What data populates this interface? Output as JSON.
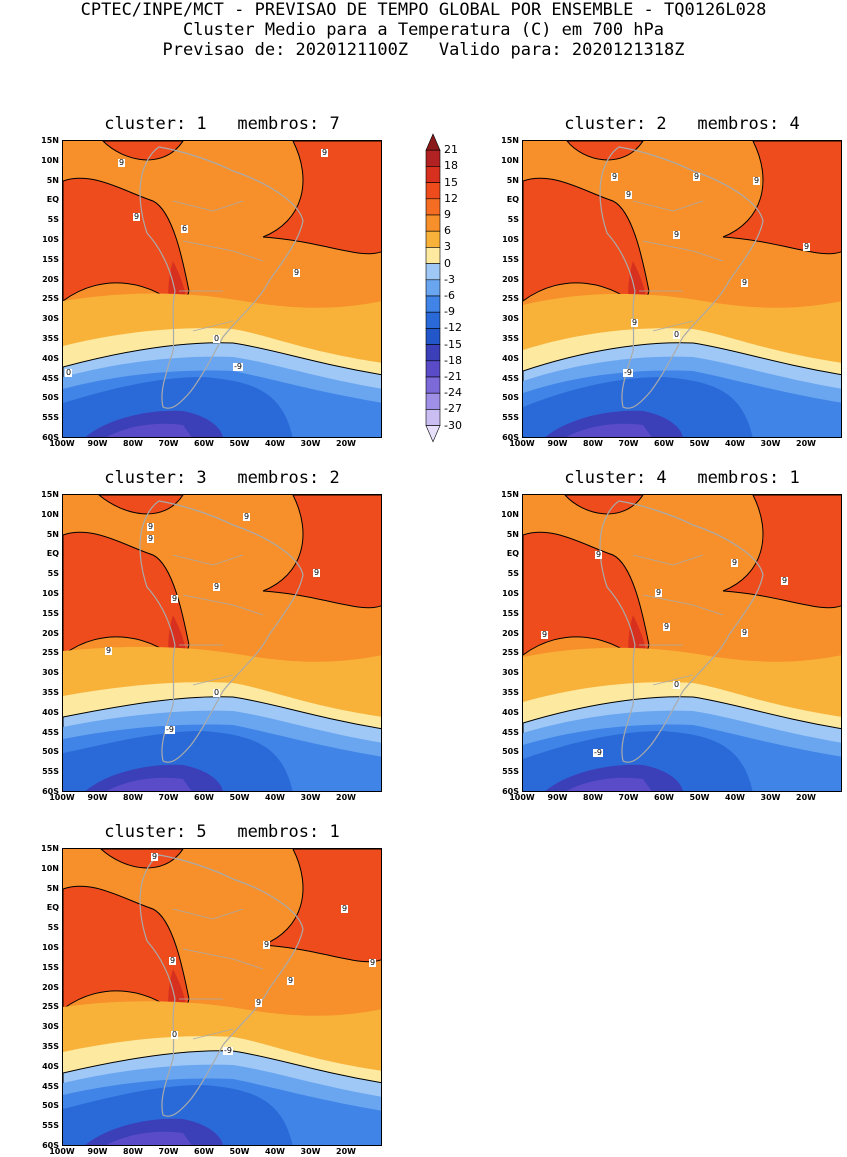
{
  "header": {
    "line1": "CPTEC/INPE/MCT - PREVISAO DE TEMPO GLOBAL POR ENSEMBLE - TQ0126L028",
    "line2": "Cluster Medio para a Temperatura (C) em 700 hPa",
    "line3": "Previsao de: 2020121100Z   Valido para: 2020121318Z"
  },
  "axes": {
    "lat_labels": [
      "15N",
      "10N",
      "5N",
      "EQ",
      "5S",
      "10S",
      "15S",
      "20S",
      "25S",
      "30S",
      "35S",
      "40S",
      "45S",
      "50S",
      "55S",
      "60S"
    ],
    "lon_labels": [
      "100W",
      "90W",
      "80W",
      "70W",
      "60W",
      "50W",
      "40W",
      "30W",
      "20W"
    ]
  },
  "colorbar": {
    "labels": [
      "21",
      "18",
      "15",
      "12",
      "9",
      "6",
      "3",
      "0",
      "-3",
      "-6",
      "-9",
      "-12",
      "-15",
      "-18",
      "-21",
      "-24",
      "-27",
      "-30"
    ],
    "colors": [
      "#8b1a1a",
      "#b22222",
      "#d7301f",
      "#ee4c1c",
      "#f46d23",
      "#f7902a",
      "#f8b23a",
      "#fde9a0",
      "#9fc8f6",
      "#6aa6f0",
      "#3f84e6",
      "#2a6ad8",
      "#2356c8",
      "#3b3fb8",
      "#5a4cc8",
      "#7c6ad8",
      "#a08fe6",
      "#c9bdf2",
      "#e8e0fa"
    ]
  },
  "chart_data": [
    {
      "type": "heatmap",
      "variable": "Temperatura 700 hPa (C)",
      "cluster": "1",
      "membros": "7",
      "title": "cluster: 1   membros: 7",
      "contour_labels": [
        "9",
        "9",
        "6",
        "9",
        "9",
        "0",
        "0",
        "-9"
      ]
    },
    {
      "type": "heatmap",
      "variable": "Temperatura 700 hPa (C)",
      "cluster": "2",
      "membros": "4",
      "title": "cluster: 2   membros: 4",
      "contour_labels": [
        "9",
        "9",
        "9",
        "9",
        "9",
        "9",
        "9",
        "9",
        "0",
        "-9"
      ]
    },
    {
      "type": "heatmap",
      "variable": "Temperatura 700 hPa (C)",
      "cluster": "3",
      "membros": "2",
      "title": "cluster: 3   membros: 2",
      "contour_labels": [
        "9",
        "9",
        "9",
        "9",
        "9",
        "9",
        "9",
        "0",
        "-9"
      ]
    },
    {
      "type": "heatmap",
      "variable": "Temperatura 700 hPa (C)",
      "cluster": "4",
      "membros": "1",
      "title": "cluster: 4   membros: 1",
      "contour_labels": [
        "9",
        "9",
        "9",
        "9",
        "9",
        "9",
        "9",
        "0",
        "-9"
      ]
    },
    {
      "type": "heatmap",
      "variable": "Temperatura 700 hPa (C)",
      "cluster": "5",
      "membros": "1",
      "title": "cluster: 5   membros: 1",
      "contour_labels": [
        "9",
        "9",
        "9",
        "9",
        "9",
        "9",
        "9",
        "0",
        "-9"
      ]
    }
  ]
}
